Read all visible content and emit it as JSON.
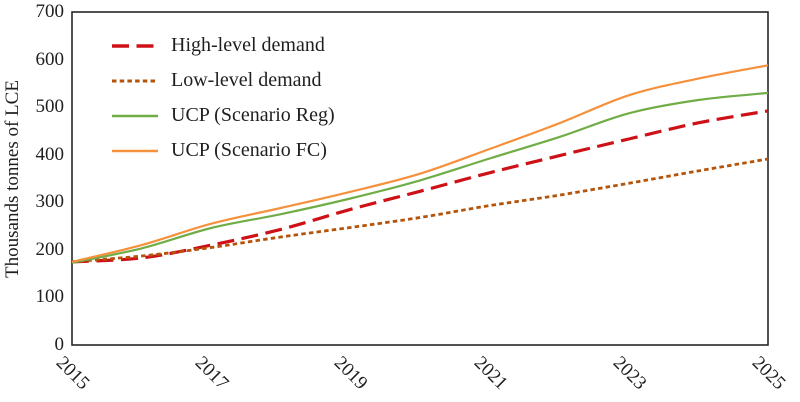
{
  "chart_data": {
    "type": "line",
    "title": "",
    "ylabel": "Thousands tonnes of LCE",
    "xlabel": "",
    "x": [
      2015,
      2016,
      2017,
      2018,
      2019,
      2020,
      2021,
      2022,
      2023,
      2024,
      2025
    ],
    "x_tick_labels": [
      "2015",
      "2017",
      "2019",
      "2021",
      "2023",
      "2025"
    ],
    "y_ticks": [
      0,
      100,
      200,
      300,
      400,
      500,
      600,
      700
    ],
    "ylim": [
      0,
      700
    ],
    "grid": false,
    "legend_position": "top-left-inside",
    "series": [
      {
        "name": "High-level demand",
        "color": "#cd1117",
        "line_style": "dashed",
        "values": [
          175,
          183,
          210,
          243,
          285,
          323,
          362,
          398,
          433,
          467,
          492
        ]
      },
      {
        "name": "Low-level demand",
        "color": "#b4540a",
        "line_style": "dotted",
        "values": [
          175,
          187,
          205,
          227,
          247,
          268,
          293,
          315,
          340,
          366,
          391
        ]
      },
      {
        "name": "UCP (Scenario Reg)",
        "color": "#70ad47",
        "line_style": "solid",
        "values": [
          173,
          203,
          246,
          275,
          308,
          346,
          392,
          437,
          487,
          515,
          530
        ]
      },
      {
        "name": "UCP (Scenario FC)",
        "color": "#f5913d",
        "line_style": "solid",
        "values": [
          175,
          210,
          255,
          288,
          322,
          360,
          412,
          466,
          525,
          560,
          588
        ]
      }
    ]
  },
  "colors": {
    "axis": "#262626",
    "text": "#1f1f1f",
    "background": "#ffffff"
  }
}
